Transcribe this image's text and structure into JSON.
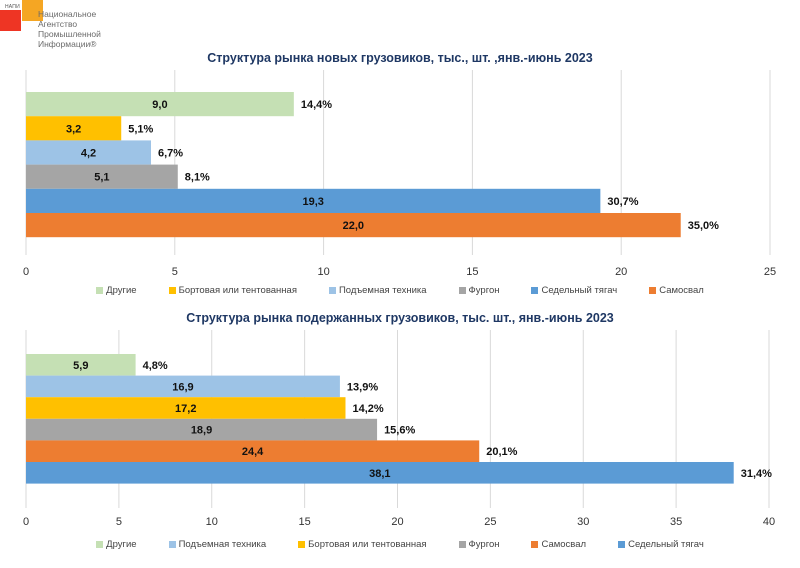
{
  "logo": {
    "abbr": "НАПИ",
    "line1": "Национальное",
    "line2": "Агентство",
    "line3": "Промышленной",
    "line4": "Информации®"
  },
  "colors": {
    "Другие": "#c5e0b4",
    "Бортовая или тентованная": "#ffc000",
    "Подъемная техника": "#9dc3e6",
    "Фургон": "#a5a5a5",
    "Седельный тягач": "#5b9bd5",
    "Самосвал": "#ed7d31"
  },
  "chart_data": [
    {
      "type": "bar",
      "orientation": "horizontal",
      "title": "Структура рынка новых грузовиков, тыс., шт. ,янв.-июнь 2023",
      "categories": [
        "Другие",
        "Бортовая или тентованная",
        "Подъемная техника",
        "Фургон",
        "Седельный тягач",
        "Самосвал"
      ],
      "values": [
        9.0,
        3.2,
        4.2,
        5.1,
        19.3,
        22.0
      ],
      "value_labels": [
        "9,0",
        "3,2",
        "4,2",
        "5,1",
        "19,3",
        "22,0"
      ],
      "percent_labels": [
        "14,4%",
        "5,1%",
        "6,7%",
        "8,1%",
        "30,7%",
        "35,0%"
      ],
      "xlim": [
        0,
        25
      ],
      "xticks": [
        0,
        5,
        10,
        15,
        20,
        25
      ],
      "xtick_labels": [
        "0",
        "5",
        "10",
        "15",
        "20",
        "25"
      ],
      "grid": true,
      "legend": [
        "Другие",
        "Бортовая или тентованная",
        "Подъемная техника",
        "Фургон",
        "Седельный тягач",
        "Самосвал"
      ],
      "legend_position": "bottom",
      "xlabel": "",
      "ylabel": ""
    },
    {
      "type": "bar",
      "orientation": "horizontal",
      "title": "Структура рынка подержанных грузовиков, тыс. шт., янв.-июнь 2023",
      "categories": [
        "Другие",
        "Подъемная техника",
        "Бортовая или тентованная",
        "Фургон",
        "Самосвал",
        "Седельный тягач"
      ],
      "values": [
        5.9,
        16.9,
        17.2,
        18.9,
        24.4,
        38.1
      ],
      "value_labels": [
        "5,9",
        "16,9",
        "17,2",
        "18,9",
        "24,4",
        "38,1"
      ],
      "percent_labels": [
        "4,8%",
        "13,9%",
        "14,2%",
        "15,6%",
        "20,1%",
        "31,4%"
      ],
      "xlim": [
        0,
        40
      ],
      "xticks": [
        0,
        5,
        10,
        15,
        20,
        25,
        30,
        35,
        40
      ],
      "xtick_labels": [
        "0",
        "5",
        "10",
        "15",
        "20",
        "25",
        "30",
        "35",
        "40"
      ],
      "grid": true,
      "legend": [
        "Другие",
        "Подъемная техника",
        "Бортовая или тентованная",
        "Фургон",
        "Самосвал",
        "Седельный тягач"
      ],
      "legend_position": "bottom",
      "xlabel": "",
      "ylabel": ""
    }
  ]
}
